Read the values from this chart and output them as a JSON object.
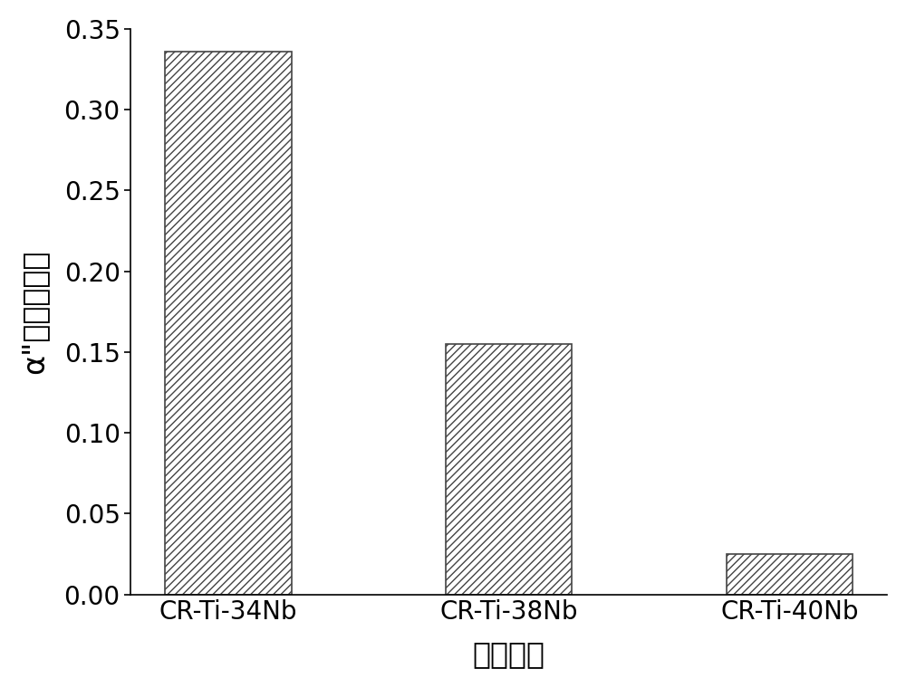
{
  "categories": [
    "CR-Ti-34Nb",
    "CR-Ti-38Nb",
    "CR-Ti-40Nb"
  ],
  "values": [
    0.336,
    0.155,
    0.025
  ],
  "bar_color": "#ffffff",
  "bar_edge_color": "#444444",
  "hatch_pattern": "////",
  "ylabel": "α\"相体积分数",
  "xlabel": "三种合金",
  "ylim": [
    0.0,
    0.35
  ],
  "yticks": [
    0.0,
    0.05,
    0.1,
    0.15,
    0.2,
    0.25,
    0.3,
    0.35
  ],
  "bar_width": 0.45,
  "ylabel_fontsize": 24,
  "xlabel_fontsize": 24,
  "tick_fontsize": 20,
  "xtick_fontsize": 20,
  "background_color": "#ffffff",
  "edge_linewidth": 1.2
}
